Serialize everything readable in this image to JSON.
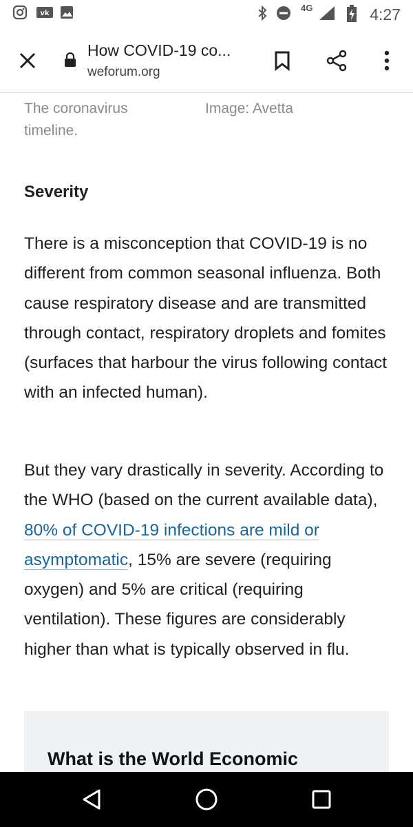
{
  "status_bar": {
    "time": "4:27",
    "network": "4G",
    "icons_left": [
      "instagram-icon",
      "vk-icon",
      "image-icon"
    ],
    "icons_right": [
      "bluetooth-icon",
      "do-not-disturb-icon",
      "signal-icon",
      "battery-charging-icon"
    ]
  },
  "toolbar": {
    "title": "How COVID-19 co...",
    "domain": "weforum.org"
  },
  "article": {
    "caption_left": "The coronavirus\ntimeline.",
    "caption_right": "Image: Avetta",
    "heading": "Severity",
    "para1": "There is a misconception that COVID-19 is no different from common seasonal influenza. Both cause respiratory disease and are transmitted through contact, respiratory droplets and fomites (surfaces that harbour the virus following contact with an infected human).",
    "para2_before": "But they vary drastically in severity. According to the WHO (based on the current available data), ",
    "para2_link": "80% of COVID-19 infections are mild or asymptomatic",
    "para2_after": ", 15% are severe (requiring oxygen) and 5% are critical (requiring ventilation). These figures are considerably higher than what is typically observed in flu.",
    "box_title": "What is the World Economic"
  }
}
